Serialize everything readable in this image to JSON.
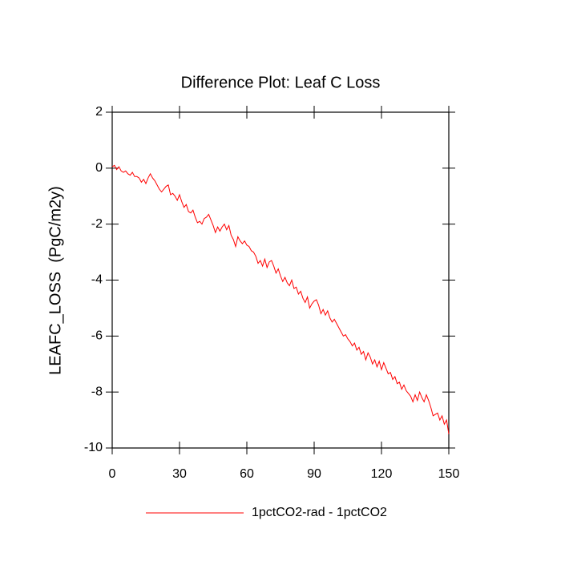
{
  "chart_data": {
    "type": "line",
    "title": "Difference Plot: Leaf C Loss",
    "y_label": "LEAFC_LOSS  (PgC/m2y)",
    "x": [
      0,
      1,
      2,
      3,
      4,
      5,
      6,
      7,
      8,
      9,
      10,
      11,
      12,
      13,
      14,
      15,
      16,
      17,
      18,
      19,
      20,
      21,
      22,
      23,
      24,
      25,
      26,
      27,
      28,
      29,
      30,
      31,
      32,
      33,
      34,
      35,
      36,
      37,
      38,
      39,
      40,
      41,
      42,
      43,
      44,
      45,
      46,
      47,
      48,
      49,
      50,
      51,
      52,
      53,
      54,
      55,
      56,
      57,
      58,
      59,
      60,
      61,
      62,
      63,
      64,
      65,
      66,
      67,
      68,
      69,
      70,
      71,
      72,
      73,
      74,
      75,
      76,
      77,
      78,
      79,
      80,
      81,
      82,
      83,
      84,
      85,
      86,
      87,
      88,
      89,
      90,
      91,
      92,
      93,
      94,
      95,
      96,
      97,
      98,
      99,
      100,
      101,
      102,
      103,
      104,
      105,
      106,
      107,
      108,
      109,
      110,
      111,
      112,
      113,
      114,
      115,
      116,
      117,
      118,
      119,
      120,
      121,
      122,
      123,
      124,
      125,
      126,
      127,
      128,
      129,
      130,
      131,
      132,
      133,
      134,
      135,
      136,
      137,
      138,
      139,
      140,
      141,
      142,
      143,
      144,
      145,
      146,
      147,
      148,
      149,
      150
    ],
    "series": [
      {
        "name": "1pctCO2-rad - 1pctCO2",
        "color": "#ff0000",
        "values": [
          0.05,
          0.1,
          -0.05,
          0.05,
          -0.1,
          -0.15,
          -0.1,
          -0.2,
          -0.25,
          -0.15,
          -0.3,
          -0.3,
          -0.35,
          -0.5,
          -0.4,
          -0.55,
          -0.35,
          -0.2,
          -0.35,
          -0.45,
          -0.6,
          -0.75,
          -0.85,
          -0.75,
          -0.65,
          -0.6,
          -0.95,
          -0.9,
          -1.0,
          -1.15,
          -0.95,
          -1.2,
          -1.4,
          -1.3,
          -1.55,
          -1.6,
          -1.5,
          -1.75,
          -1.95,
          -1.9,
          -2.0,
          -1.8,
          -1.75,
          -1.65,
          -1.85,
          -2.05,
          -2.3,
          -2.1,
          -2.25,
          -2.1,
          -2.0,
          -2.2,
          -2.05,
          -2.4,
          -2.55,
          -2.8,
          -2.45,
          -2.6,
          -2.7,
          -2.6,
          -2.75,
          -2.8,
          -2.95,
          -3.0,
          -3.15,
          -3.4,
          -3.3,
          -3.5,
          -3.25,
          -3.55,
          -3.35,
          -3.3,
          -3.5,
          -3.75,
          -3.6,
          -3.85,
          -4.05,
          -3.9,
          -4.1,
          -4.2,
          -4.0,
          -4.3,
          -4.25,
          -4.5,
          -4.4,
          -4.65,
          -4.8,
          -4.6,
          -5.0,
          -4.85,
          -4.75,
          -4.7,
          -4.9,
          -5.2,
          -5.05,
          -5.25,
          -5.1,
          -5.35,
          -5.5,
          -5.4,
          -5.55,
          -5.7,
          -5.85,
          -6.0,
          -5.95,
          -6.1,
          -6.2,
          -6.35,
          -6.25,
          -6.5,
          -6.4,
          -6.65,
          -6.55,
          -6.85,
          -6.6,
          -6.75,
          -7.0,
          -6.85,
          -7.1,
          -6.9,
          -7.2,
          -6.95,
          -7.15,
          -7.35,
          -7.3,
          -7.55,
          -7.45,
          -7.7,
          -7.65,
          -7.9,
          -7.75,
          -7.95,
          -8.05,
          -8.15,
          -8.35,
          -8.1,
          -8.3,
          -8.0,
          -8.2,
          -8.35,
          -8.1,
          -8.3,
          -8.55,
          -8.85,
          -8.8,
          -8.75,
          -9.0,
          -8.85,
          -9.15,
          -9.0,
          -9.5
        ]
      }
    ],
    "xlim": [
      0,
      150
    ],
    "xticks": [
      0,
      30,
      60,
      90,
      120,
      150
    ],
    "ylim": [
      -10,
      2
    ],
    "yticks": [
      -10,
      -8,
      -6,
      -4,
      -2,
      0,
      2
    ],
    "legend": "bottom"
  }
}
